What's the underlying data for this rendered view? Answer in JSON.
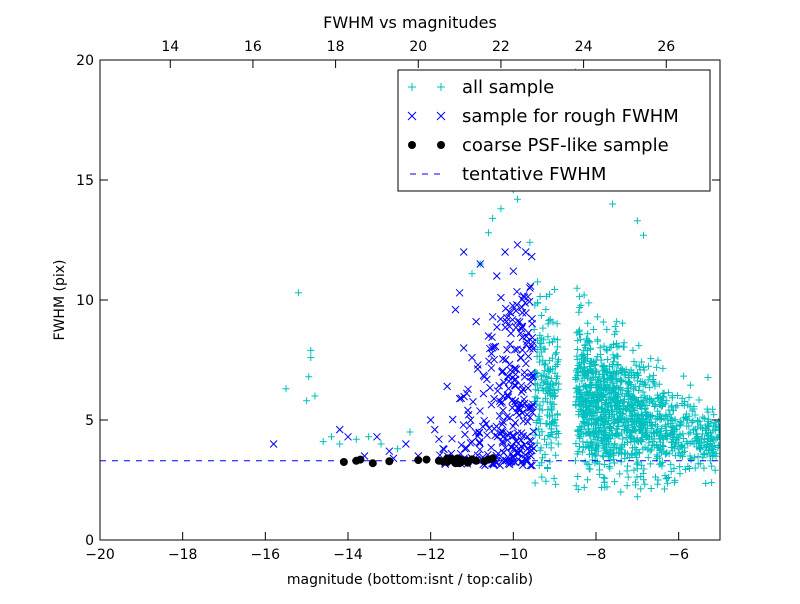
{
  "chart_data": {
    "type": "scatter",
    "title": "FWHM vs magnitudes",
    "xlabel": "magnitude (bottom:isnt / top:calib)",
    "ylabel": "FWHM (pix)",
    "xlim": [
      -20,
      -5
    ],
    "ylim": [
      0,
      20
    ],
    "x_ticks": [
      -20,
      -18,
      -16,
      -14,
      -12,
      -10,
      -8,
      -6
    ],
    "x_tick_labels": [
      "−20",
      "−18",
      "−16",
      "−14",
      "−12",
      "−10",
      "−8",
      "−6"
    ],
    "y_ticks": [
      0,
      5,
      10,
      15,
      20
    ],
    "y_tick_labels": [
      "0",
      "5",
      "10",
      "15",
      "20"
    ],
    "top_axis": {
      "offset": 32.3,
      "ticks": [
        14,
        16,
        18,
        20,
        22,
        24,
        26
      ],
      "tick_labels": [
        "14",
        "16",
        "18",
        "20",
        "22",
        "24",
        "26"
      ]
    },
    "legend_position": "top-right",
    "grid": false,
    "series": [
      {
        "name": "all sample",
        "marker": "plus",
        "color": "#00bfbf",
        "points": [
          [
            -15.5,
            6.3
          ],
          [
            -15.2,
            10.3
          ],
          [
            -15.0,
            5.8
          ],
          [
            -14.95,
            6.8
          ],
          [
            -14.9,
            7.9
          ],
          [
            -14.9,
            7.6
          ],
          [
            -14.8,
            6.0
          ],
          [
            -14.6,
            4.1
          ],
          [
            -14.4,
            4.3
          ],
          [
            -14.2,
            4.0
          ],
          [
            -13.8,
            4.2
          ],
          [
            -13.5,
            4.3
          ],
          [
            -13.2,
            4.0
          ],
          [
            -12.8,
            3.8
          ],
          [
            -12.5,
            4.5
          ],
          [
            -11.0,
            11.1
          ],
          [
            -10.8,
            11.5
          ],
          [
            -10.6,
            12.8
          ],
          [
            -10.5,
            13.4
          ],
          [
            -10.3,
            13.8
          ],
          [
            -10.0,
            14.6
          ],
          [
            -9.9,
            14.2
          ],
          [
            -9.6,
            12.4
          ],
          [
            -8.5,
            19.5
          ],
          [
            -8.2,
            15.4
          ],
          [
            -7.9,
            15.1
          ],
          [
            -7.6,
            14.0
          ],
          [
            -7.0,
            13.3
          ],
          [
            -6.85,
            12.7
          ],
          [
            -7.5,
            9.1
          ],
          [
            -7.8,
            2.4
          ],
          [
            -7.4,
            2.0
          ],
          [
            -7.0,
            1.8
          ],
          [
            -6.5,
            2.5
          ],
          [
            -6.1,
            2.4
          ],
          [
            -5.6,
            3.0
          ],
          [
            -5.1,
            3.6
          ]
        ],
        "cloud": {
          "description_values": "dense cloud of points between x -9.5 and -5 with FWHM mostly between 2 and 12",
          "count": 1500,
          "x_range": [
            -9.5,
            -5.0
          ],
          "peak_x": -8.5,
          "mean_y_at_peak": 6.5,
          "mean_y_at_faint_end": 4.0,
          "y_spread_at_peak": 1.9,
          "y_spread_at_faint_end": 0.6
        }
      },
      {
        "name": "sample for rough FWHM",
        "marker": "x",
        "color": "#0000ff",
        "points": [
          [
            -15.8,
            4.0
          ],
          [
            -14.2,
            4.6
          ],
          [
            -14.0,
            4.3
          ],
          [
            -13.6,
            3.5
          ],
          [
            -13.3,
            4.3
          ],
          [
            -13.0,
            3.7
          ],
          [
            -12.9,
            3.4
          ],
          [
            -12.6,
            4.0
          ],
          [
            -12.3,
            3.5
          ],
          [
            -12.0,
            5.0
          ],
          [
            -11.9,
            4.6
          ],
          [
            -11.8,
            4.2
          ],
          [
            -11.7,
            3.8
          ],
          [
            -11.6,
            6.4
          ],
          [
            -11.5,
            3.6
          ],
          [
            -11.4,
            9.6
          ],
          [
            -11.3,
            10.3
          ],
          [
            -11.2,
            12.0
          ],
          [
            -11.2,
            8.0
          ],
          [
            -11.1,
            5.4
          ],
          [
            -11.0,
            7.6
          ],
          [
            -10.9,
            9.1
          ],
          [
            -10.8,
            11.5
          ],
          [
            -10.7,
            6.8
          ],
          [
            -10.6,
            8.5
          ],
          [
            -10.5,
            9.3
          ],
          [
            -10.4,
            11.0
          ],
          [
            -10.3,
            10.1
          ],
          [
            -10.2,
            12.0
          ],
          [
            -10.1,
            9.5
          ],
          [
            -10.0,
            11.2
          ],
          [
            -9.9,
            12.3
          ],
          [
            -9.8,
            8.8
          ],
          [
            -9.7,
            12.0
          ],
          [
            -9.6,
            10.5
          ],
          [
            -9.55,
            8.1
          ]
        ],
        "cloud": {
          "description_values": "band of points between x -12 and -9.5, FWHM 3 to 12, densest near -10 to -9.5",
          "count": 280,
          "x_range": [
            -12.0,
            -9.5
          ],
          "y_range": [
            3.1,
            12.0
          ]
        }
      },
      {
        "name": "coarse PSF-like sample",
        "marker": "circle",
        "color": "#000000",
        "points": [
          [
            -14.1,
            3.25
          ],
          [
            -13.8,
            3.3
          ],
          [
            -13.7,
            3.35
          ],
          [
            -13.4,
            3.2
          ],
          [
            -13.0,
            3.28
          ],
          [
            -12.3,
            3.33
          ],
          [
            -12.1,
            3.35
          ],
          [
            -11.8,
            3.3
          ],
          [
            -11.6,
            3.25
          ],
          [
            -11.5,
            3.38
          ],
          [
            -11.45,
            3.3
          ],
          [
            -11.4,
            3.2
          ],
          [
            -11.35,
            3.4
          ],
          [
            -11.3,
            3.35
          ],
          [
            -11.25,
            3.28
          ],
          [
            -11.2,
            3.32
          ],
          [
            -11.1,
            3.22
          ],
          [
            -11.0,
            3.36
          ],
          [
            -10.9,
            3.3
          ],
          [
            -10.7,
            3.28
          ],
          [
            -10.6,
            3.35
          ],
          [
            -10.5,
            3.4
          ],
          [
            -11.6,
            3.4
          ],
          [
            -11.7,
            3.27
          ],
          [
            -11.3,
            3.2
          ],
          [
            -11.15,
            3.3
          ]
        ]
      },
      {
        "name": "tentative FWHM",
        "marker": "dashed-line",
        "color": "#0000ff",
        "value": 3.3
      }
    ]
  }
}
